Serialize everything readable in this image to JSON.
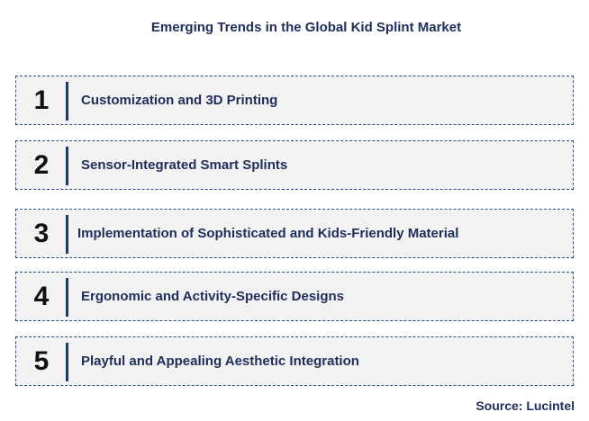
{
  "title": "Emerging Trends in the Global Kid Splint Market",
  "trends": [
    {
      "number": "1",
      "label": "Customization and 3D Printing"
    },
    {
      "number": "2",
      "label": "Sensor-Integrated Smart Splints"
    },
    {
      "number": "3",
      "label": "Implementation of Sophisticated and Kids-Friendly Material"
    },
    {
      "number": "4",
      "label": "Ergonomic and Activity-Specific Designs"
    },
    {
      "number": "5",
      "label": "Playful and Appealing Aesthetic Integration"
    }
  ],
  "source": "Source: Lucintel",
  "colors": {
    "text_primary": "#1f2d5a",
    "box_background": "#f2f2f2",
    "box_border": "#2e4a80",
    "divider": "#1f3a6a"
  }
}
